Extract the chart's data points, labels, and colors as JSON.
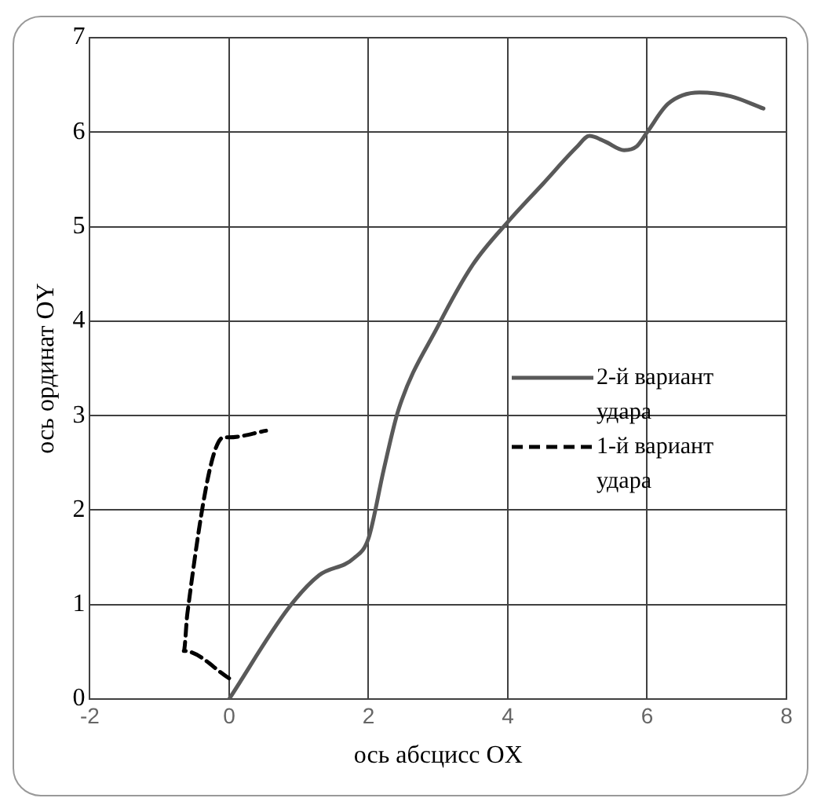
{
  "chart_data": {
    "type": "line",
    "xlabel": "ось абсцисс OX",
    "ylabel": "ось ординат OY",
    "xlim": [
      -2,
      8
    ],
    "xticks": [
      -2,
      0,
      2,
      4,
      6,
      8
    ],
    "ylim": [
      0,
      7
    ],
    "yticks": [
      0,
      1,
      2,
      3,
      4,
      5,
      6,
      7
    ],
    "grid": true,
    "legend": "right",
    "marker": "none",
    "series": [
      {
        "name": "2-й вариант удара",
        "color": "#595959",
        "line_style": "solid",
        "x": [
          0,
          0.86,
          1.29,
          1.79,
          2.0,
          2.22,
          2.43,
          3.0,
          3.5,
          4.0,
          4.5,
          5.0,
          5.17,
          5.4,
          5.67,
          5.85,
          6.0,
          6.3,
          6.75,
          7.2,
          7.67
        ],
        "values": [
          0,
          0.97,
          1.31,
          1.49,
          1.7,
          2.43,
          3.06,
          3.95,
          4.6,
          5.05,
          5.45,
          5.85,
          5.96,
          5.9,
          5.81,
          5.85,
          6.0,
          6.3,
          6.42,
          6.38,
          6.25
        ]
      },
      {
        "name": "1-й вариант удара",
        "color": "#000000",
        "line_style": "dashed",
        "x": [
          0,
          -0.65,
          -0.6,
          -0.08,
          0,
          0.53
        ],
        "values": [
          0.22,
          0.51,
          0.9,
          2.77,
          2.77,
          2.84
        ]
      }
    ]
  }
}
